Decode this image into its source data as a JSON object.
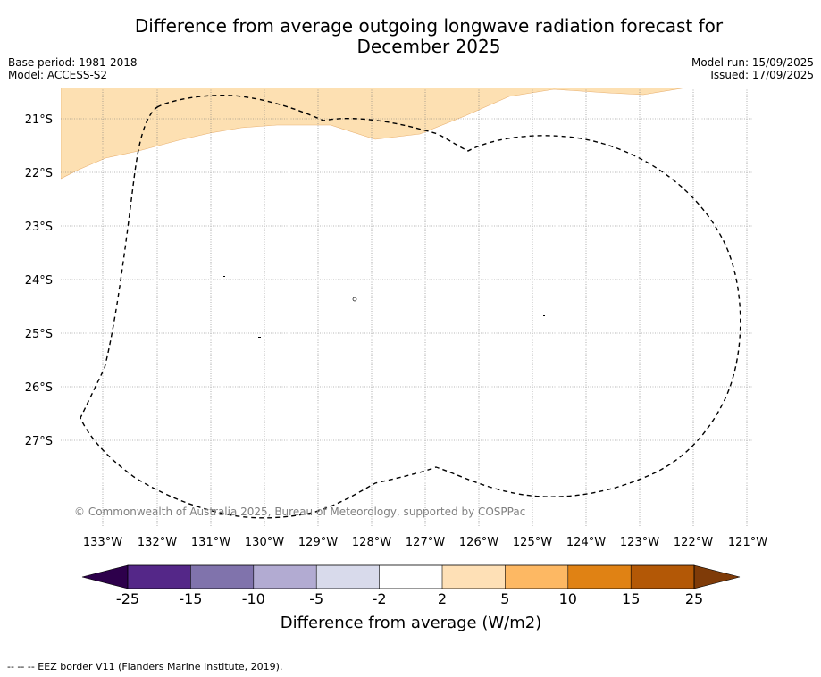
{
  "title": "Difference from average outgoing longwave radiation forecast for December 2025",
  "title_lines": [
    "Difference from average outgoing longwave radiation forecast for",
    "December 2025"
  ],
  "header": {
    "base_period": "Base period: 1981-2018",
    "model": "Model: ACCESS-S2",
    "model_run": "Model run: 15/09/2025",
    "issued": "Issued: 17/09/2025"
  },
  "map": {
    "lon_ticks": [
      "133°W",
      "132°W",
      "131°W",
      "130°W",
      "129°W",
      "128°W",
      "127°W",
      "126°W",
      "125°W",
      "124°W",
      "123°W",
      "122°W",
      "121°W"
    ],
    "lat_ticks": [
      "21°S",
      "22°S",
      "23°S",
      "24°S",
      "25°S",
      "26°S",
      "27°S"
    ],
    "copyright": "© Commonwealth of Australia 2025, Bureau of Meteorology, supported by COSPPac",
    "anomaly_region_color": "#fde0b2",
    "anomaly_region_category": "2 to 5"
  },
  "colorbar": {
    "label": "Difference from average (W/m2)",
    "ticks": [
      "-25",
      "-15",
      "-10",
      "-5",
      "-2",
      "2",
      "5",
      "10",
      "15",
      "25"
    ],
    "colors": [
      "#542788",
      "#8073ac",
      "#b2abd2",
      "#d8daeb",
      "#ffffff",
      "#fee0b6",
      "#fdb863",
      "#e08214",
      "#b35806"
    ],
    "under_color": "#2d004b",
    "over_color": "#7f3b08"
  },
  "legend_note": "--  --  -- EEZ border V11 (Flanders Marine Institute, 2019)."
}
